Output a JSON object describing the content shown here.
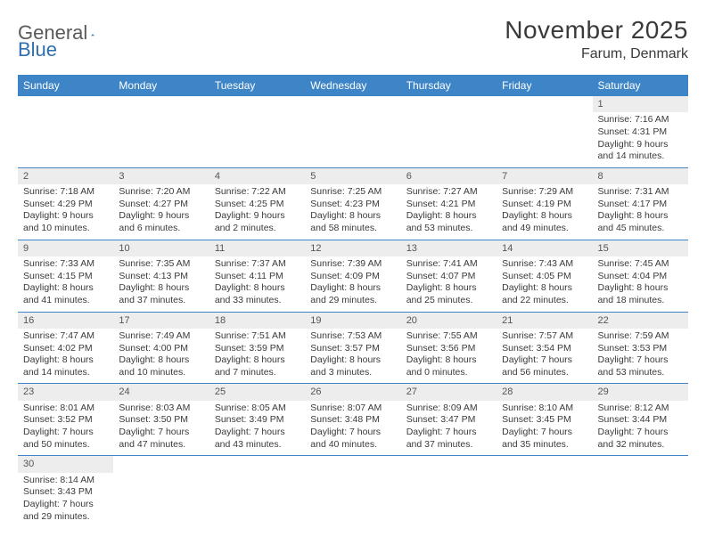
{
  "logo": {
    "text1": "General",
    "text2": "Blue"
  },
  "title": "November 2025",
  "location": "Farum, Denmark",
  "colors": {
    "header_bg": "#3d85c6",
    "header_fg": "#ffffff",
    "daynum_bg": "#ededed",
    "border": "#3d85c6",
    "text": "#3a3a3a",
    "logo_gray": "#5a5a5a",
    "logo_blue": "#2f6fb0"
  },
  "weekdays": [
    "Sunday",
    "Monday",
    "Tuesday",
    "Wednesday",
    "Thursday",
    "Friday",
    "Saturday"
  ],
  "weeks": [
    [
      null,
      null,
      null,
      null,
      null,
      null,
      {
        "n": "1",
        "sr": "Sunrise: 7:16 AM",
        "ss": "Sunset: 4:31 PM",
        "dl1": "Daylight: 9 hours",
        "dl2": "and 14 minutes."
      }
    ],
    [
      {
        "n": "2",
        "sr": "Sunrise: 7:18 AM",
        "ss": "Sunset: 4:29 PM",
        "dl1": "Daylight: 9 hours",
        "dl2": "and 10 minutes."
      },
      {
        "n": "3",
        "sr": "Sunrise: 7:20 AM",
        "ss": "Sunset: 4:27 PM",
        "dl1": "Daylight: 9 hours",
        "dl2": "and 6 minutes."
      },
      {
        "n": "4",
        "sr": "Sunrise: 7:22 AM",
        "ss": "Sunset: 4:25 PM",
        "dl1": "Daylight: 9 hours",
        "dl2": "and 2 minutes."
      },
      {
        "n": "5",
        "sr": "Sunrise: 7:25 AM",
        "ss": "Sunset: 4:23 PM",
        "dl1": "Daylight: 8 hours",
        "dl2": "and 58 minutes."
      },
      {
        "n": "6",
        "sr": "Sunrise: 7:27 AM",
        "ss": "Sunset: 4:21 PM",
        "dl1": "Daylight: 8 hours",
        "dl2": "and 53 minutes."
      },
      {
        "n": "7",
        "sr": "Sunrise: 7:29 AM",
        "ss": "Sunset: 4:19 PM",
        "dl1": "Daylight: 8 hours",
        "dl2": "and 49 minutes."
      },
      {
        "n": "8",
        "sr": "Sunrise: 7:31 AM",
        "ss": "Sunset: 4:17 PM",
        "dl1": "Daylight: 8 hours",
        "dl2": "and 45 minutes."
      }
    ],
    [
      {
        "n": "9",
        "sr": "Sunrise: 7:33 AM",
        "ss": "Sunset: 4:15 PM",
        "dl1": "Daylight: 8 hours",
        "dl2": "and 41 minutes."
      },
      {
        "n": "10",
        "sr": "Sunrise: 7:35 AM",
        "ss": "Sunset: 4:13 PM",
        "dl1": "Daylight: 8 hours",
        "dl2": "and 37 minutes."
      },
      {
        "n": "11",
        "sr": "Sunrise: 7:37 AM",
        "ss": "Sunset: 4:11 PM",
        "dl1": "Daylight: 8 hours",
        "dl2": "and 33 minutes."
      },
      {
        "n": "12",
        "sr": "Sunrise: 7:39 AM",
        "ss": "Sunset: 4:09 PM",
        "dl1": "Daylight: 8 hours",
        "dl2": "and 29 minutes."
      },
      {
        "n": "13",
        "sr": "Sunrise: 7:41 AM",
        "ss": "Sunset: 4:07 PM",
        "dl1": "Daylight: 8 hours",
        "dl2": "and 25 minutes."
      },
      {
        "n": "14",
        "sr": "Sunrise: 7:43 AM",
        "ss": "Sunset: 4:05 PM",
        "dl1": "Daylight: 8 hours",
        "dl2": "and 22 minutes."
      },
      {
        "n": "15",
        "sr": "Sunrise: 7:45 AM",
        "ss": "Sunset: 4:04 PM",
        "dl1": "Daylight: 8 hours",
        "dl2": "and 18 minutes."
      }
    ],
    [
      {
        "n": "16",
        "sr": "Sunrise: 7:47 AM",
        "ss": "Sunset: 4:02 PM",
        "dl1": "Daylight: 8 hours",
        "dl2": "and 14 minutes."
      },
      {
        "n": "17",
        "sr": "Sunrise: 7:49 AM",
        "ss": "Sunset: 4:00 PM",
        "dl1": "Daylight: 8 hours",
        "dl2": "and 10 minutes."
      },
      {
        "n": "18",
        "sr": "Sunrise: 7:51 AM",
        "ss": "Sunset: 3:59 PM",
        "dl1": "Daylight: 8 hours",
        "dl2": "and 7 minutes."
      },
      {
        "n": "19",
        "sr": "Sunrise: 7:53 AM",
        "ss": "Sunset: 3:57 PM",
        "dl1": "Daylight: 8 hours",
        "dl2": "and 3 minutes."
      },
      {
        "n": "20",
        "sr": "Sunrise: 7:55 AM",
        "ss": "Sunset: 3:56 PM",
        "dl1": "Daylight: 8 hours",
        "dl2": "and 0 minutes."
      },
      {
        "n": "21",
        "sr": "Sunrise: 7:57 AM",
        "ss": "Sunset: 3:54 PM",
        "dl1": "Daylight: 7 hours",
        "dl2": "and 56 minutes."
      },
      {
        "n": "22",
        "sr": "Sunrise: 7:59 AM",
        "ss": "Sunset: 3:53 PM",
        "dl1": "Daylight: 7 hours",
        "dl2": "and 53 minutes."
      }
    ],
    [
      {
        "n": "23",
        "sr": "Sunrise: 8:01 AM",
        "ss": "Sunset: 3:52 PM",
        "dl1": "Daylight: 7 hours",
        "dl2": "and 50 minutes."
      },
      {
        "n": "24",
        "sr": "Sunrise: 8:03 AM",
        "ss": "Sunset: 3:50 PM",
        "dl1": "Daylight: 7 hours",
        "dl2": "and 47 minutes."
      },
      {
        "n": "25",
        "sr": "Sunrise: 8:05 AM",
        "ss": "Sunset: 3:49 PM",
        "dl1": "Daylight: 7 hours",
        "dl2": "and 43 minutes."
      },
      {
        "n": "26",
        "sr": "Sunrise: 8:07 AM",
        "ss": "Sunset: 3:48 PM",
        "dl1": "Daylight: 7 hours",
        "dl2": "and 40 minutes."
      },
      {
        "n": "27",
        "sr": "Sunrise: 8:09 AM",
        "ss": "Sunset: 3:47 PM",
        "dl1": "Daylight: 7 hours",
        "dl2": "and 37 minutes."
      },
      {
        "n": "28",
        "sr": "Sunrise: 8:10 AM",
        "ss": "Sunset: 3:45 PM",
        "dl1": "Daylight: 7 hours",
        "dl2": "and 35 minutes."
      },
      {
        "n": "29",
        "sr": "Sunrise: 8:12 AM",
        "ss": "Sunset: 3:44 PM",
        "dl1": "Daylight: 7 hours",
        "dl2": "and 32 minutes."
      }
    ],
    [
      {
        "n": "30",
        "sr": "Sunrise: 8:14 AM",
        "ss": "Sunset: 3:43 PM",
        "dl1": "Daylight: 7 hours",
        "dl2": "and 29 minutes."
      },
      null,
      null,
      null,
      null,
      null,
      null
    ]
  ]
}
